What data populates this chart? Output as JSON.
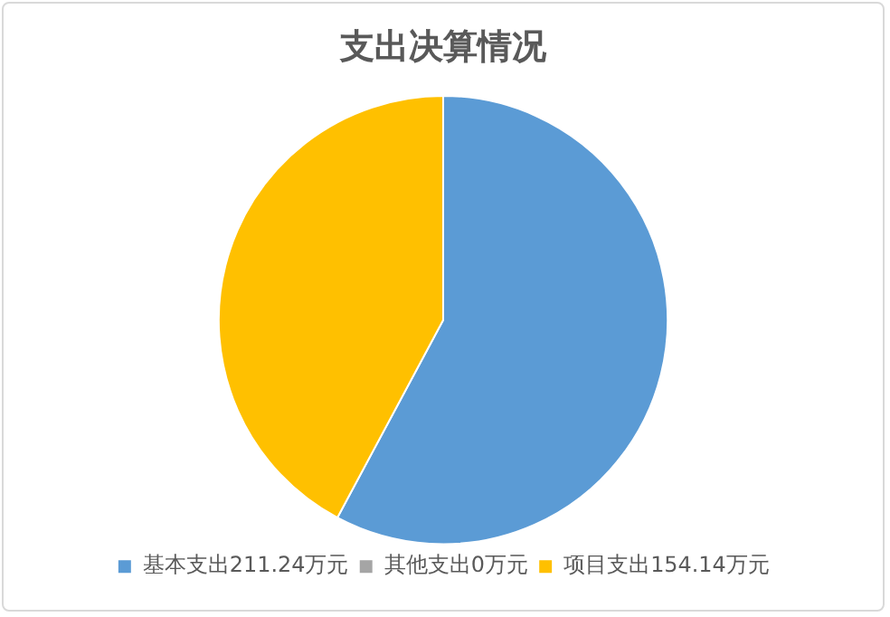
{
  "chart_data": {
    "type": "pie",
    "title": "支出决算情况",
    "categories": [
      "基本支出211.24万元",
      "其他支出0万元",
      "项目支出154.14万元"
    ],
    "values": [
      211.24,
      0,
      154.14
    ],
    "colors": [
      "#5b9bd5",
      "#a5a5a5",
      "#ffc000"
    ],
    "legend": "bottom"
  }
}
